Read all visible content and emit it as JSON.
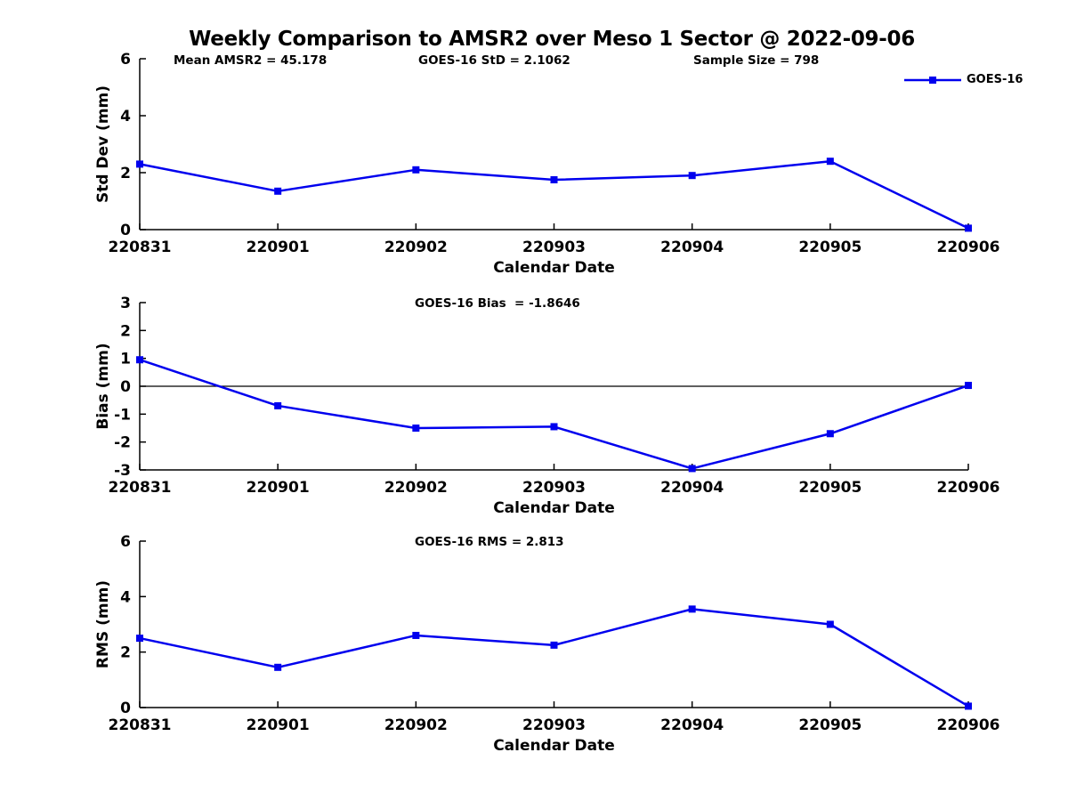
{
  "title": "Weekly Comparison to AMSR2 over Meso 1 Sector @ 2022-09-06",
  "legend": {
    "label": "GOES-16"
  },
  "colors": {
    "series": "#0000EE",
    "axis": "#000000",
    "text": "#000000",
    "background": "#ffffff"
  },
  "chart_data": {
    "type": "line",
    "title": "Weekly Comparison to AMSR2 over Meso 1 Sector @ 2022-09-06",
    "x_categories": [
      "220831",
      "220901",
      "220902",
      "220903",
      "220904",
      "220905",
      "220906"
    ],
    "xlabel": "Calendar Date",
    "series_name": "GOES-16",
    "legend_position": "top-right",
    "grid": false,
    "marker": "square",
    "panels": [
      {
        "id": "std_dev",
        "ylabel": "Std Dev (mm)",
        "ylim": [
          0,
          6
        ],
        "yticks": [
          0,
          2,
          4,
          6
        ],
        "zero_line": false,
        "values": [
          2.3,
          1.35,
          2.1,
          1.75,
          1.9,
          2.4,
          0.05
        ],
        "annotations": [
          "Mean AMSR2 = 45.178",
          "GOES-16 StD = 2.1062",
          "Sample Size = 798"
        ]
      },
      {
        "id": "bias",
        "ylabel": "Bias (mm)",
        "ylim": [
          -3,
          3
        ],
        "yticks": [
          -3,
          -2,
          -1,
          0,
          1,
          2,
          3
        ],
        "zero_line": true,
        "values": [
          0.95,
          -0.7,
          -1.5,
          -1.45,
          -2.95,
          -1.7,
          0.03
        ],
        "annotations": [
          "GOES-16 Bias  = -1.8646"
        ]
      },
      {
        "id": "rms",
        "ylabel": "RMS (mm)",
        "ylim": [
          0,
          6
        ],
        "yticks": [
          0,
          2,
          4,
          6
        ],
        "zero_line": false,
        "values": [
          2.5,
          1.45,
          2.6,
          2.25,
          3.55,
          3.0,
          0.05
        ],
        "annotations": [
          "GOES-16 RMS = 2.813"
        ]
      }
    ]
  }
}
